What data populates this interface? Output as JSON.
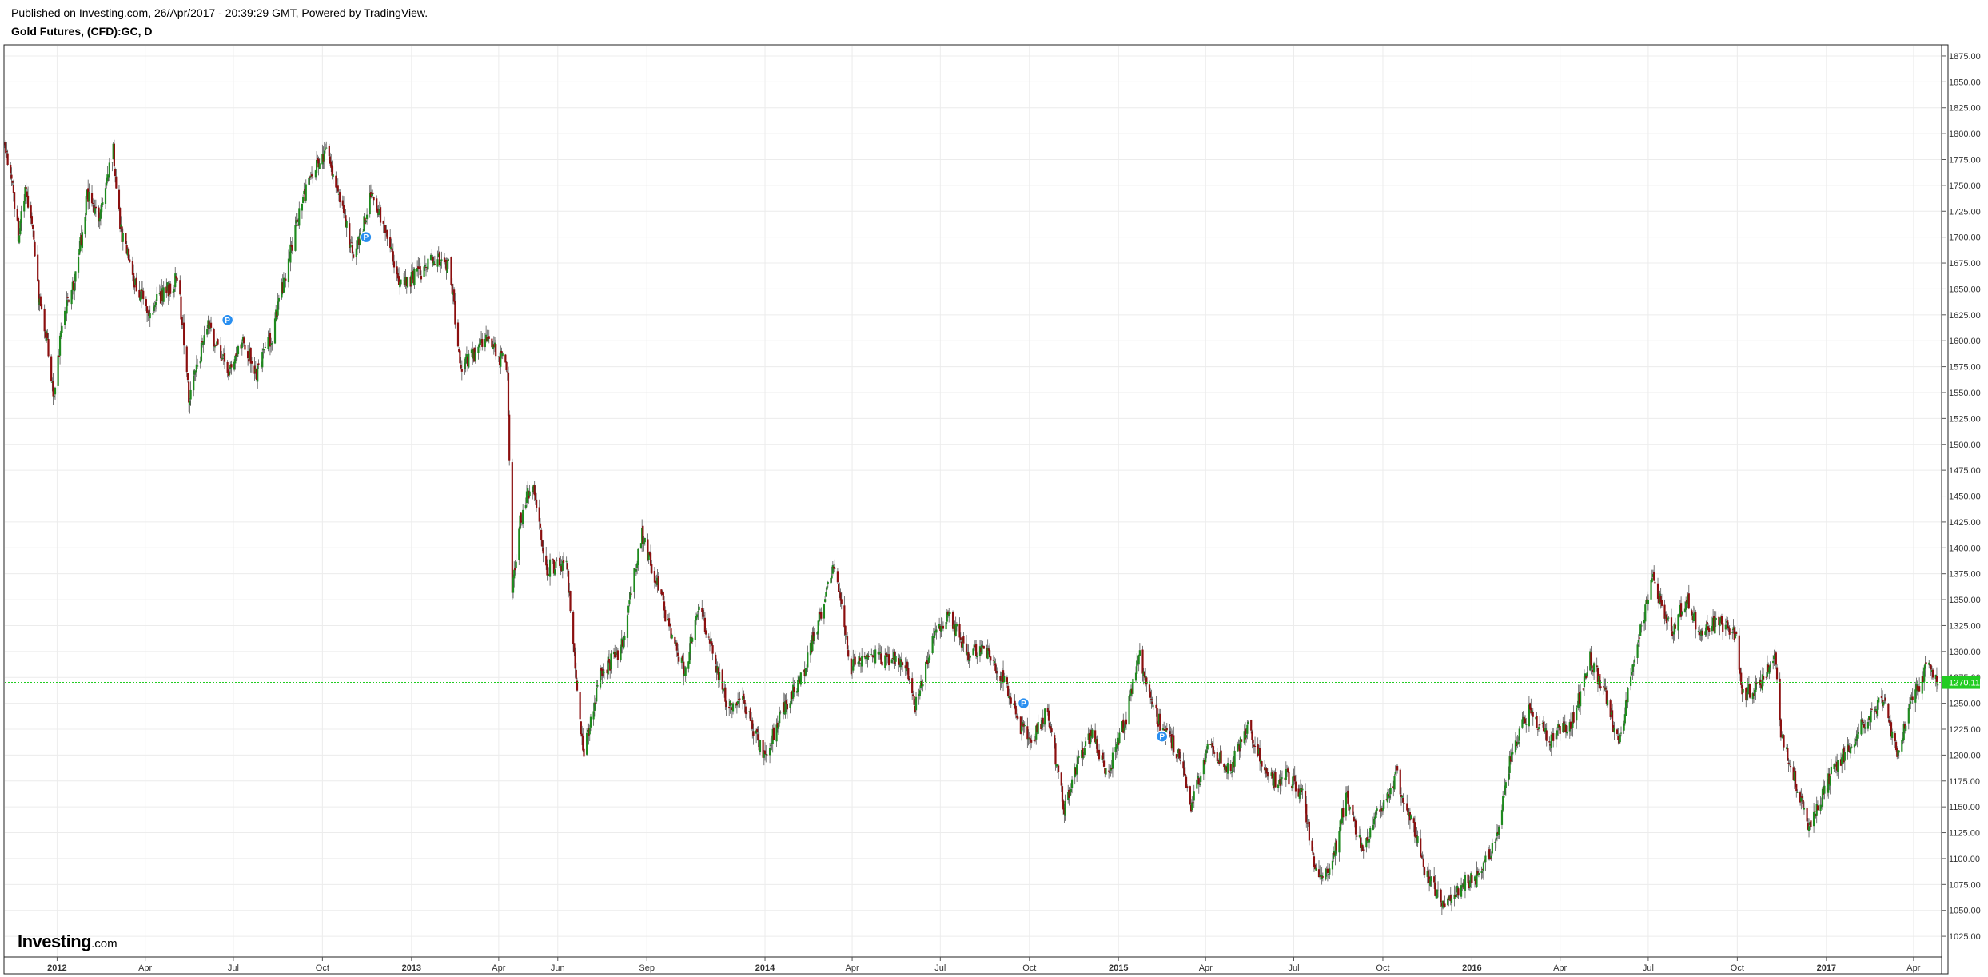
{
  "header": {
    "published": "Published on Investing.com, 26/Apr/2017 - 20:39:29 GMT, Powered by TradingView.",
    "title": "Gold Futures, (CFD):GC, D"
  },
  "brand": {
    "name": "Investing",
    "suffix": ".com"
  },
  "colors": {
    "up": "#1e8a1e",
    "down": "#8b0f0f",
    "grid": "#ececec",
    "last_price": "#22cc22",
    "marker": "#2a8ff0"
  },
  "chart_data": {
    "type": "candlestick",
    "symbol": "Gold Futures, (CFD):GC, D",
    "interval": "D",
    "last_price": 1270.11,
    "last_price_label": "1270.11",
    "ylim": [
      1005,
      1885
    ],
    "y_ticks": [
      "1875.00",
      "1850.00",
      "1825.00",
      "1800.00",
      "1775.00",
      "1750.00",
      "1725.00",
      "1700.00",
      "1675.00",
      "1650.00",
      "1625.00",
      "1600.00",
      "1575.00",
      "1550.00",
      "1525.00",
      "1500.00",
      "1475.00",
      "1450.00",
      "1425.00",
      "1400.00",
      "1375.00",
      "1350.00",
      "1325.00",
      "1300.00",
      "1275.00",
      "1250.00",
      "1225.00",
      "1200.00",
      "1175.00",
      "1150.00",
      "1125.00",
      "1100.00",
      "1075.00",
      "1050.00",
      "1025.00"
    ],
    "xlim": [
      "2011-11-08",
      "2017-04-30"
    ],
    "x_ticks": [
      {
        "label": "2012",
        "date": "2012-01-01",
        "bold": true
      },
      {
        "label": "Apr",
        "date": "2012-04-01"
      },
      {
        "label": "Jul",
        "date": "2012-07-01"
      },
      {
        "label": "Oct",
        "date": "2012-10-01"
      },
      {
        "label": "2013",
        "date": "2013-01-01",
        "bold": true
      },
      {
        "label": "Apr",
        "date": "2013-04-01"
      },
      {
        "label": "Jun",
        "date": "2013-06-01"
      },
      {
        "label": "Sep",
        "date": "2013-09-01"
      },
      {
        "label": "2014",
        "date": "2014-01-01",
        "bold": true
      },
      {
        "label": "Apr",
        "date": "2014-04-01"
      },
      {
        "label": "Jul",
        "date": "2014-07-01"
      },
      {
        "label": "Oct",
        "date": "2014-10-01"
      },
      {
        "label": "2015",
        "date": "2015-01-01",
        "bold": true
      },
      {
        "label": "Apr",
        "date": "2015-04-01"
      },
      {
        "label": "Jul",
        "date": "2015-07-01"
      },
      {
        "label": "Oct",
        "date": "2015-10-01"
      },
      {
        "label": "2016",
        "date": "2016-01-01",
        "bold": true
      },
      {
        "label": "Apr",
        "date": "2016-04-01"
      },
      {
        "label": "Jul",
        "date": "2016-07-01"
      },
      {
        "label": "Oct",
        "date": "2016-10-01"
      },
      {
        "label": "2017",
        "date": "2017-01-01",
        "bold": true
      },
      {
        "label": "Apr",
        "date": "2017-04-01"
      }
    ],
    "close_path": [
      [
        "2011-11-08",
        1790
      ],
      [
        "2011-11-15",
        1760
      ],
      [
        "2011-11-22",
        1700
      ],
      [
        "2011-11-29",
        1745
      ],
      [
        "2011-12-06",
        1720
      ],
      [
        "2011-12-13",
        1640
      ],
      [
        "2011-12-20",
        1610
      ],
      [
        "2011-12-29",
        1545
      ],
      [
        "2012-01-06",
        1620
      ],
      [
        "2012-01-20",
        1660
      ],
      [
        "2012-02-01",
        1740
      ],
      [
        "2012-02-15",
        1720
      ],
      [
        "2012-02-28",
        1785
      ],
      [
        "2012-03-06",
        1710
      ],
      [
        "2012-03-20",
        1660
      ],
      [
        "2012-04-05",
        1630
      ],
      [
        "2012-04-20",
        1645
      ],
      [
        "2012-05-05",
        1660
      ],
      [
        "2012-05-16",
        1545
      ],
      [
        "2012-06-05",
        1615
      ],
      [
        "2012-06-25",
        1570
      ],
      [
        "2012-07-10",
        1600
      ],
      [
        "2012-07-25",
        1570
      ],
      [
        "2012-08-10",
        1605
      ],
      [
        "2012-08-25",
        1670
      ],
      [
        "2012-09-10",
        1735
      ],
      [
        "2012-09-25",
        1770
      ],
      [
        "2012-10-05",
        1785
      ],
      [
        "2012-10-20",
        1735
      ],
      [
        "2012-11-02",
        1680
      ],
      [
        "2012-11-20",
        1740
      ],
      [
        "2012-12-05",
        1705
      ],
      [
        "2012-12-20",
        1655
      ],
      [
        "2013-01-10",
        1665
      ],
      [
        "2013-01-25",
        1680
      ],
      [
        "2013-02-10",
        1670
      ],
      [
        "2013-02-20",
        1575
      ],
      [
        "2013-03-05",
        1585
      ],
      [
        "2013-03-20",
        1600
      ],
      [
        "2013-04-10",
        1575
      ],
      [
        "2013-04-15",
        1360
      ],
      [
        "2013-04-22",
        1420
      ],
      [
        "2013-05-05",
        1465
      ],
      [
        "2013-05-20",
        1380
      ],
      [
        "2013-06-10",
        1385
      ],
      [
        "2013-06-27",
        1200
      ],
      [
        "2013-07-15",
        1280
      ],
      [
        "2013-08-05",
        1300
      ],
      [
        "2013-08-27",
        1415
      ],
      [
        "2013-09-10",
        1370
      ],
      [
        "2013-09-25",
        1320
      ],
      [
        "2013-10-10",
        1280
      ],
      [
        "2013-10-25",
        1345
      ],
      [
        "2013-11-10",
        1290
      ],
      [
        "2013-11-25",
        1245
      ],
      [
        "2013-12-10",
        1250
      ],
      [
        "2013-12-31",
        1200
      ],
      [
        "2014-01-20",
        1245
      ],
      [
        "2014-02-10",
        1280
      ],
      [
        "2014-03-14",
        1385
      ],
      [
        "2014-03-31",
        1285
      ],
      [
        "2014-04-15",
        1300
      ],
      [
        "2014-05-10",
        1290
      ],
      [
        "2014-05-25",
        1295
      ],
      [
        "2014-06-05",
        1245
      ],
      [
        "2014-06-25",
        1320
      ],
      [
        "2014-07-10",
        1335
      ],
      [
        "2014-07-30",
        1295
      ],
      [
        "2014-08-15",
        1305
      ],
      [
        "2014-09-05",
        1270
      ],
      [
        "2014-09-20",
        1230
      ],
      [
        "2014-10-05",
        1215
      ],
      [
        "2014-10-20",
        1245
      ],
      [
        "2014-11-06",
        1145
      ],
      [
        "2014-11-20",
        1195
      ],
      [
        "2014-12-05",
        1220
      ],
      [
        "2014-12-20",
        1180
      ],
      [
        "2015-01-10",
        1240
      ],
      [
        "2015-01-22",
        1300
      ],
      [
        "2015-02-10",
        1235
      ],
      [
        "2015-03-05",
        1200
      ],
      [
        "2015-03-17",
        1150
      ],
      [
        "2015-04-05",
        1210
      ],
      [
        "2015-04-25",
        1185
      ],
      [
        "2015-05-15",
        1225
      ],
      [
        "2015-06-05",
        1175
      ],
      [
        "2015-06-25",
        1180
      ],
      [
        "2015-07-10",
        1160
      ],
      [
        "2015-07-24",
        1085
      ],
      [
        "2015-08-10",
        1095
      ],
      [
        "2015-08-24",
        1160
      ],
      [
        "2015-09-10",
        1105
      ],
      [
        "2015-09-25",
        1145
      ],
      [
        "2015-10-15",
        1180
      ],
      [
        "2015-10-30",
        1140
      ],
      [
        "2015-11-15",
        1085
      ],
      [
        "2015-12-03",
        1050
      ],
      [
        "2015-12-20",
        1075
      ],
      [
        "2016-01-05",
        1080
      ],
      [
        "2016-01-25",
        1115
      ],
      [
        "2016-02-10",
        1200
      ],
      [
        "2016-03-01",
        1245
      ],
      [
        "2016-03-20",
        1215
      ],
      [
        "2016-04-15",
        1235
      ],
      [
        "2016-05-02",
        1295
      ],
      [
        "2016-05-15",
        1265
      ],
      [
        "2016-06-01",
        1210
      ],
      [
        "2016-06-15",
        1290
      ],
      [
        "2016-07-06",
        1370
      ],
      [
        "2016-07-25",
        1320
      ],
      [
        "2016-08-10",
        1350
      ],
      [
        "2016-08-25",
        1315
      ],
      [
        "2016-09-10",
        1330
      ],
      [
        "2016-09-30",
        1315
      ],
      [
        "2016-10-06",
        1255
      ],
      [
        "2016-10-25",
        1270
      ],
      [
        "2016-11-09",
        1300
      ],
      [
        "2016-11-15",
        1225
      ],
      [
        "2016-12-01",
        1170
      ],
      [
        "2016-12-15",
        1130
      ],
      [
        "2017-01-05",
        1180
      ],
      [
        "2017-01-25",
        1210
      ],
      [
        "2017-02-15",
        1240
      ],
      [
        "2017-03-01",
        1255
      ],
      [
        "2017-03-15",
        1200
      ],
      [
        "2017-03-30",
        1250
      ],
      [
        "2017-04-17",
        1290
      ],
      [
        "2017-04-26",
        1270
      ]
    ],
    "events": [
      {
        "date": "2012-06-25",
        "price": 1620,
        "label": "P"
      },
      {
        "date": "2012-11-15",
        "price": 1700,
        "label": "P"
      },
      {
        "date": "2014-09-25",
        "price": 1250,
        "label": "P"
      },
      {
        "date": "2015-02-15",
        "price": 1218,
        "label": "P"
      }
    ]
  }
}
